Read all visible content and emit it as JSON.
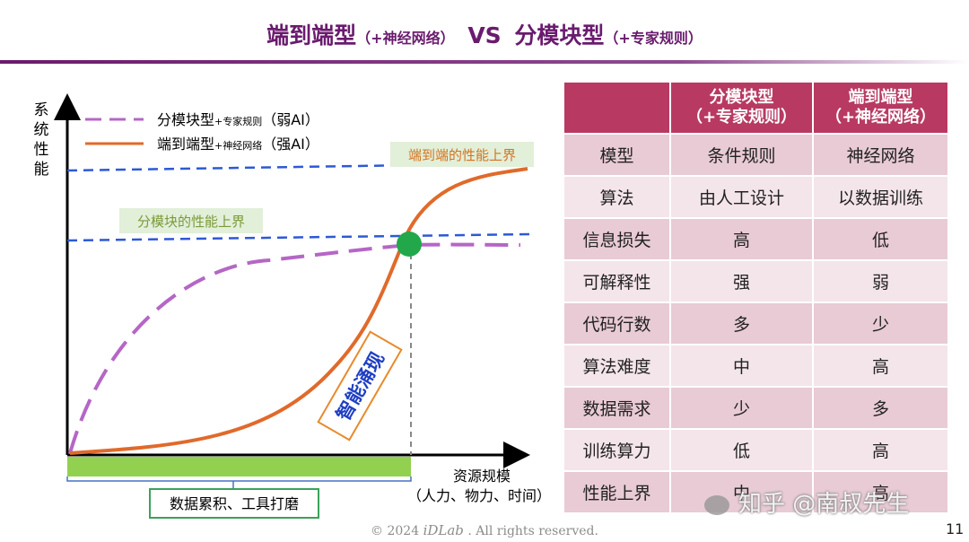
{
  "title": {
    "main_left": "端到端型",
    "sub_left": "（+神经网络）",
    "vs": "VS",
    "main_right": "分模块型",
    "sub_right": "（+专家规则）"
  },
  "diagram": {
    "y_axis_label": [
      "系",
      "统",
      "性",
      "能"
    ],
    "legend": [
      {
        "name": "分模块型",
        "suffix": "+专家规则",
        "tag": "（弱AI）",
        "color": "#b566c6",
        "style": "dashed"
      },
      {
        "name": "端到端型",
        "suffix": "+神经网络",
        "tag": "（强AI）",
        "color": "#e06a2b",
        "style": "solid"
      }
    ],
    "upper_bound_label": "端到端的性能上界",
    "modular_bound_label": "分模块的性能上界",
    "emergence_label": "智能涌现",
    "x_axis_label": "资源规模",
    "x_axis_sublabel": "（人力、物力、时间）",
    "bracket_label": "数据累积、工具打磨",
    "colors": {
      "bound_line": "#2d59d6",
      "crossover": "#22a84b",
      "bracket": "#92d050",
      "label_box": "#e2efd9",
      "text_orange": "#d5731f",
      "text_green": "#7a9a3b"
    }
  },
  "table": {
    "headers": [
      "",
      "分模块型\n（+专家规则）",
      "端到端型\n（+神经网络）"
    ],
    "rows": [
      [
        "模型",
        "条件规则",
        "神经网络"
      ],
      [
        "算法",
        "由人工设计",
        "以数据训练"
      ],
      [
        "信息损失",
        "高",
        "低"
      ],
      [
        "可解释性",
        "强",
        "弱"
      ],
      [
        "代码行数",
        "多",
        "少"
      ],
      [
        "算法难度",
        "中",
        "高"
      ],
      [
        "数据需求",
        "少",
        "多"
      ],
      [
        "训练算力",
        "低",
        "高"
      ],
      [
        "性能上界",
        "中",
        "高"
      ]
    ]
  },
  "footer": {
    "copyright_prefix": "© 2024 ",
    "copyright_brand": "iDLab",
    "copyright_suffix": " . All rights reserved.",
    "page_number": "11",
    "watermark": "知乎 @南叔先生"
  }
}
